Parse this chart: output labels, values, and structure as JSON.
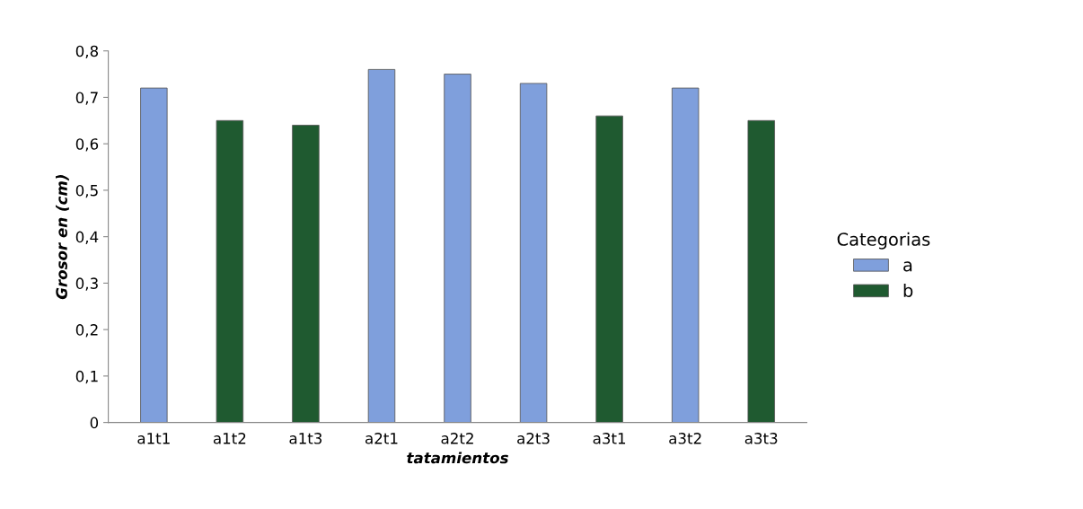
{
  "chart_data": {
    "type": "bar",
    "categories": [
      "a1t1",
      "a1t2",
      "a1t3",
      "a2t1",
      "a2t2",
      "a2t3",
      "a3t1",
      "a3t2",
      "a3t3"
    ],
    "series": [
      {
        "name": "a",
        "color": "#7f9fdc",
        "values": [
          0.72,
          null,
          null,
          0.76,
          0.75,
          0.73,
          null,
          0.72,
          null
        ]
      },
      {
        "name": "b",
        "color": "#1f5a30",
        "values": [
          null,
          0.65,
          0.64,
          null,
          null,
          null,
          0.66,
          null,
          0.65
        ]
      }
    ],
    "xlabel": "tatamientos",
    "ylabel": "Grosor en (cm)",
    "legend_title": "Categorias",
    "legend": "right",
    "ylim": [
      0,
      0.8
    ],
    "yticks": [
      0,
      {
        "value": 0.1,
        "label": "0,1"
      },
      {
        "value": 0.2,
        "label": "0,2"
      },
      {
        "value": 0.3,
        "label": "0,3"
      },
      {
        "value": 0.4,
        "label": "0,4"
      },
      {
        "value": 0.5,
        "label": "0,5"
      },
      {
        "value": 0.6,
        "label": "0,6"
      },
      {
        "value": 0.7,
        "label": "0,7"
      },
      {
        "value": 0.8,
        "label": "0,8"
      }
    ],
    "grid": false
  }
}
